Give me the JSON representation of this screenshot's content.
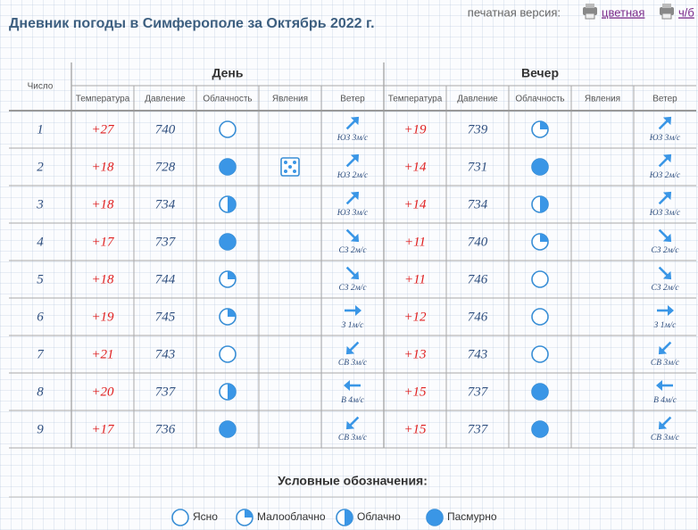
{
  "header": {
    "title": "Дневник погоды в Симферополе за Октябрь 2022 г.",
    "print_label": "печатная версия:",
    "print_links": [
      "цветная",
      "ч/б"
    ]
  },
  "table": {
    "date_col": "Число",
    "groups": [
      "День",
      "Вечер"
    ],
    "columns": [
      "Температура",
      "Давление",
      "Облачность",
      "Явления",
      "Ветер"
    ],
    "rows": [
      {
        "date": 1,
        "day": {
          "temp": "+27",
          "pressure": 740,
          "cloud": "Ясно",
          "wind": "ЮЗ 3м/с"
        },
        "evening": {
          "temp": "+19",
          "pressure": 739,
          "cloud": "Малооблачно",
          "wind": "ЮЗ 3м/с"
        }
      },
      {
        "date": 2,
        "day": {
          "temp": "+18",
          "pressure": 728,
          "cloud": "Пасмурно",
          "wind": "ЮЗ 2м/с"
        },
        "evening": {
          "temp": "+14",
          "pressure": 731,
          "cloud": "Пасмурно",
          "wind": "ЮЗ 2м/с"
        }
      },
      {
        "date": 3,
        "day": {
          "temp": "+18",
          "pressure": 734,
          "cloud": "Облачно",
          "wind": "ЮЗ 3м/с"
        },
        "evening": {
          "temp": "+14",
          "pressure": 734,
          "cloud": "Облачно",
          "wind": "ЮЗ 3м/с"
        }
      },
      {
        "date": 4,
        "day": {
          "temp": "+17",
          "pressure": 737,
          "cloud": "Пасмурно",
          "wind": "СЗ 2м/с"
        },
        "evening": {
          "temp": "+11",
          "pressure": 740,
          "cloud": "Малооблачно",
          "wind": "СЗ 2м/с"
        }
      },
      {
        "date": 5,
        "day": {
          "temp": "+18",
          "pressure": 744,
          "cloud": "Малооблачно",
          "wind": "СЗ 2м/с"
        },
        "evening": {
          "temp": "+11",
          "pressure": 746,
          "cloud": "Ясно",
          "wind": "СЗ 2м/с"
        }
      },
      {
        "date": 6,
        "day": {
          "temp": "+19",
          "pressure": 745,
          "cloud": "Малооблачно",
          "wind": "З 1м/с"
        },
        "evening": {
          "temp": "+12",
          "pressure": 746,
          "cloud": "Ясно",
          "wind": "З 1м/с"
        }
      },
      {
        "date": 7,
        "day": {
          "temp": "+21",
          "pressure": 743,
          "cloud": "Ясно",
          "wind": "СВ 3м/с"
        },
        "evening": {
          "temp": "+13",
          "pressure": 743,
          "cloud": "Ясно",
          "wind": "СВ 3м/с"
        }
      },
      {
        "date": 8,
        "day": {
          "temp": "+20",
          "pressure": 737,
          "cloud": "Облачно",
          "wind": "В 4м/с"
        },
        "evening": {
          "temp": "+15",
          "pressure": 737,
          "cloud": "Пасмурно",
          "wind": "В 4м/с"
        }
      },
      {
        "date": 9,
        "day": {
          "temp": "+17",
          "pressure": 736,
          "cloud": "Пасмурно",
          "wind": "СВ 3м/с"
        },
        "evening": {
          "temp": "+15",
          "pressure": 737,
          "cloud": "Пасмурно",
          "wind": "СВ 3м/с"
        }
      }
    ]
  },
  "legend": {
    "title": "Условные обозначения:",
    "items": [
      "Ясно",
      "Малооблачно",
      "Облачно",
      "Пасмурно"
    ]
  }
}
